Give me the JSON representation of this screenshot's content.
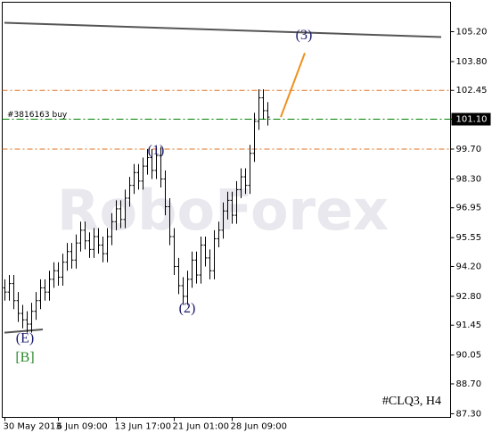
{
  "chart_data": {
    "type": "ohlc",
    "symbol": "#CLQ3, H4",
    "watermark": "RoboForex",
    "color": "#000000",
    "categories": [
      "30 May 2013",
      null,
      null,
      null,
      null,
      null,
      null,
      null,
      null,
      null,
      null,
      null,
      "6 Jun 09:00",
      null,
      null,
      null,
      null,
      null,
      null,
      null,
      null,
      null,
      null,
      null,
      null,
      "13 Jun 17:00",
      null,
      null,
      null,
      null,
      null,
      null,
      null,
      null,
      null,
      null,
      null,
      null,
      "21 Jun 01:00",
      null,
      null,
      null,
      null,
      null,
      null,
      null,
      null,
      null,
      null,
      null,
      null,
      "28 Jun 09:00",
      null,
      null,
      null,
      null,
      null,
      null,
      null,
      null
    ],
    "open": [
      93.2,
      93.0,
      93.4,
      92.6,
      92.0,
      91.7,
      91.5,
      92.1,
      92.6,
      93.2,
      93.0,
      93.6,
      94.0,
      93.7,
      94.4,
      94.9,
      94.5,
      95.3,
      95.9,
      95.4,
      95.0,
      95.6,
      95.2,
      94.8,
      95.6,
      96.3,
      96.9,
      96.4,
      97.4,
      98.0,
      98.6,
      98.2,
      98.9,
      99.3,
      98.7,
      99.4,
      98.3,
      97.0,
      95.6,
      94.2,
      93.3,
      92.8,
      93.6,
      94.5,
      93.8,
      95.2,
      94.6,
      94.0,
      95.5,
      95.9,
      96.8,
      97.3,
      96.6,
      97.8,
      98.4,
      98.0,
      99.5,
      101.0,
      102.1,
      101.5
    ],
    "high": [
      93.6,
      93.8,
      93.8,
      93.0,
      92.4,
      92.1,
      92.5,
      93.0,
      93.6,
      93.6,
      94.0,
      94.4,
      94.4,
      94.8,
      95.3,
      95.3,
      95.7,
      96.3,
      96.3,
      95.8,
      96.0,
      96.0,
      95.6,
      96.0,
      96.7,
      97.3,
      97.3,
      97.8,
      98.4,
      99.0,
      99.0,
      99.3,
      99.7,
      99.7,
      99.8,
      99.8,
      98.7,
      97.4,
      96.0,
      94.6,
      93.7,
      94.0,
      94.9,
      94.9,
      95.6,
      95.6,
      95.0,
      95.9,
      96.3,
      97.2,
      97.7,
      97.7,
      98.2,
      98.8,
      98.8,
      99.9,
      101.4,
      102.5,
      102.5,
      101.9
    ],
    "low": [
      92.6,
      92.6,
      92.2,
      91.6,
      91.3,
      91.1,
      91.1,
      91.7,
      92.2,
      92.6,
      92.6,
      93.2,
      93.3,
      93.3,
      94.0,
      94.1,
      94.1,
      94.9,
      95.0,
      94.6,
      94.6,
      94.8,
      94.4,
      94.4,
      95.2,
      95.9,
      96.0,
      96.0,
      97.0,
      97.6,
      97.8,
      97.8,
      98.5,
      98.3,
      98.3,
      97.9,
      96.6,
      95.2,
      93.8,
      92.9,
      92.4,
      92.4,
      93.2,
      93.4,
      93.4,
      94.2,
      93.6,
      93.6,
      95.1,
      95.5,
      96.4,
      96.2,
      96.2,
      97.4,
      97.6,
      97.6,
      99.1,
      100.6,
      101.1,
      100.8
    ],
    "close": [
      93.0,
      93.4,
      92.6,
      92.0,
      91.7,
      91.5,
      92.1,
      92.6,
      93.2,
      93.0,
      93.6,
      94.0,
      93.7,
      94.4,
      94.9,
      94.5,
      95.3,
      95.9,
      95.4,
      95.0,
      95.6,
      95.2,
      94.8,
      95.6,
      96.3,
      96.9,
      96.4,
      97.4,
      98.0,
      98.6,
      98.2,
      98.9,
      99.3,
      98.7,
      99.4,
      98.3,
      97.0,
      95.6,
      94.2,
      93.3,
      92.8,
      93.6,
      94.5,
      93.8,
      95.2,
      94.6,
      94.0,
      95.5,
      95.9,
      96.8,
      97.3,
      96.6,
      97.8,
      98.4,
      98.0,
      99.5,
      101.0,
      102.1,
      101.5,
      101.2
    ],
    "ylim": [
      87.13,
      106.58
    ],
    "yticks": [
      {
        "value": 105.2,
        "label": "105.20"
      },
      {
        "value": 103.8,
        "label": "103.80"
      },
      102.45,
      {
        "value": 101.1,
        "label": "101.10"
      },
      {
        "value": 99.7,
        "label": "99.70"
      },
      {
        "value": 98.3,
        "label": "98.30"
      },
      96.95,
      95.55,
      {
        "value": 94.2,
        "label": "94.20"
      },
      {
        "value": 92.8,
        "label": "92.80"
      },
      91.45,
      90.05,
      {
        "value": 88.7,
        "label": "88.70"
      },
      {
        "value": 87.3,
        "label": "87.30"
      }
    ],
    "order": {
      "value": 101.1,
      "label": "#3816163 buy",
      "color": "#008000"
    },
    "levels": [
      {
        "value": 102.45,
        "color": "#e07020"
      },
      {
        "value": 99.7,
        "color": "#e07020"
      }
    ],
    "trendlines": [
      {
        "x": [
          -0.1,
          97.9
        ],
        "y": [
          105.62,
          104.95
        ],
        "color": "#555555"
      },
      {
        "x": [
          -0.1,
          8.5
        ],
        "y": [
          91.1,
          91.25
        ],
        "color": "#555555"
      },
      {
        "x": [
          61.9,
          67.3
        ],
        "y": [
          101.2,
          104.2
        ],
        "color": "#f0901e"
      }
    ],
    "wave_labels": [
      {
        "text": "(1)",
        "x": 33.9,
        "y": 99.6,
        "color": "#1a1a6e"
      },
      {
        "text": "(2)",
        "x": 40.9,
        "y": 92.2,
        "color": "#1a1a6e"
      },
      {
        "text": "(3)",
        "x": 67.1,
        "y": 105.0,
        "color": "#1a1a6e"
      },
      {
        "text": "(E)",
        "x": 4.5,
        "y": 90.8,
        "color": "#1a1a6e"
      },
      {
        "text": "[B]",
        "x": 4.5,
        "y": 89.9,
        "color": "#2a8a2a"
      }
    ]
  }
}
